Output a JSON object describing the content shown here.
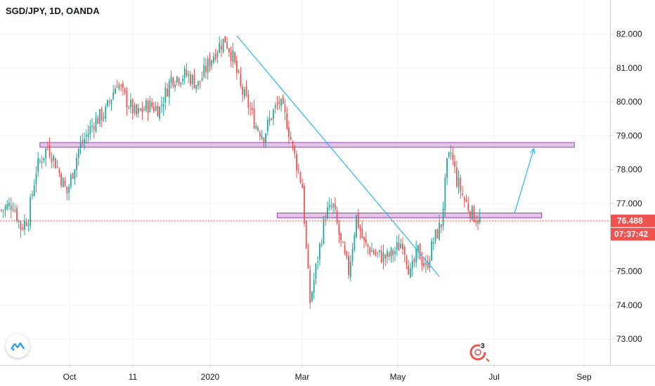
{
  "header": {
    "title": "SGD/JPY, 1D, OANDA"
  },
  "badge": {
    "events_count": "3"
  },
  "colors": {
    "up": "#26a69a",
    "down": "#ef5350",
    "zone_fill": "#e1bee7",
    "zone_stroke": "#9c27b0",
    "trend": "#29b6f6",
    "last": "#ef5350"
  },
  "chart_data": {
    "type": "candlestick",
    "title": "SGD/JPY, 1D, OANDA",
    "ylim": [
      72.3,
      82.9
    ],
    "y_ticks": [
      "82.000",
      "81.000",
      "80.000",
      "79.000",
      "78.000",
      "77.000",
      "75.000",
      "74.000",
      "73.000"
    ],
    "x_ticks": [
      "Oct",
      "11",
      "2020",
      "Mar",
      "May",
      "Jul",
      "Sep"
    ],
    "grid": true,
    "last_price": "76.488",
    "countdown": "07:37:42",
    "anchors": [
      [
        0,
        76.8
      ],
      [
        6,
        77.0
      ],
      [
        10,
        76.3
      ],
      [
        14,
        76.6
      ],
      [
        18,
        78.0
      ],
      [
        24,
        78.7
      ],
      [
        28,
        78.2
      ],
      [
        34,
        77.3
      ],
      [
        40,
        78.6
      ],
      [
        48,
        79.4
      ],
      [
        54,
        79.7
      ],
      [
        60,
        80.6
      ],
      [
        64,
        80.1
      ],
      [
        70,
        79.6
      ],
      [
        76,
        79.9
      ],
      [
        82,
        79.8
      ],
      [
        88,
        80.7
      ],
      [
        96,
        80.8
      ],
      [
        102,
        80.5
      ],
      [
        108,
        81.2
      ],
      [
        112,
        81.6
      ],
      [
        116,
        81.85
      ],
      [
        120,
        81.3
      ],
      [
        124,
        80.4
      ],
      [
        128,
        79.9
      ],
      [
        132,
        79.3
      ],
      [
        136,
        79.0
      ],
      [
        140,
        79.6
      ],
      [
        144,
        80.0
      ],
      [
        148,
        79.4
      ],
      [
        152,
        78.4
      ],
      [
        156,
        77.5
      ],
      [
        158,
        75.6
      ],
      [
        160,
        74.1
      ],
      [
        164,
        75.4
      ],
      [
        168,
        76.7
      ],
      [
        172,
        76.9
      ],
      [
        176,
        75.8
      ],
      [
        180,
        75.0
      ],
      [
        184,
        76.6
      ],
      [
        188,
        75.8
      ],
      [
        194,
        75.5
      ],
      [
        200,
        75.4
      ],
      [
        204,
        75.6
      ],
      [
        208,
        75.9
      ],
      [
        212,
        74.9
      ],
      [
        216,
        75.6
      ],
      [
        220,
        75.1
      ],
      [
        224,
        75.9
      ],
      [
        228,
        76.4
      ],
      [
        231,
        78.1
      ],
      [
        233,
        78.5
      ],
      [
        236,
        77.7
      ],
      [
        240,
        77.1
      ],
      [
        244,
        76.7
      ],
      [
        248,
        76.5
      ]
    ],
    "zones": [
      {
        "from": 20,
        "to": 297,
        "low": 78.66,
        "high": 78.8
      },
      {
        "from": 143,
        "to": 280,
        "low": 76.58,
        "high": 76.72
      }
    ],
    "trend_lines": [
      {
        "p1": [
          122,
          81.95
        ],
        "p2": [
          227,
          74.85
        ]
      },
      {
        "p1": [
          266,
          76.72
        ],
        "p2": [
          276,
          78.62
        ]
      }
    ]
  }
}
